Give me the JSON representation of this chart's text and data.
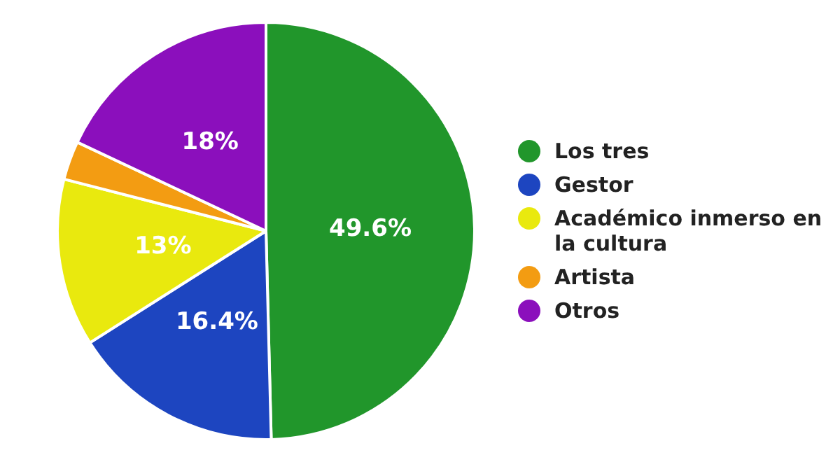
{
  "chart_data": {
    "type": "pie",
    "categories": [
      "Los tres",
      "Gestor",
      "Académico inmerso en la cultura",
      "Artista",
      "Otros"
    ],
    "values": [
      49.6,
      16.4,
      13,
      3,
      18
    ],
    "colors": [
      "#21962b",
      "#1d45c0",
      "#e9e90e",
      "#f39c12",
      "#8b0fbc"
    ],
    "value_labels": [
      "49.6%",
      "16.4%",
      "13%",
      null,
      "18%"
    ],
    "legend": "right"
  }
}
